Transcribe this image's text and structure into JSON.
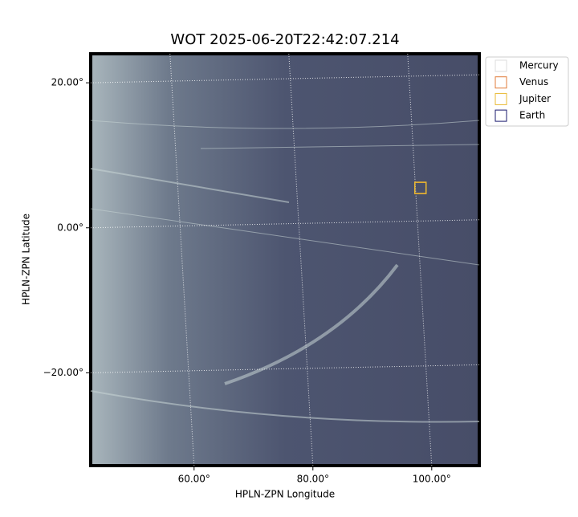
{
  "chart_data": {
    "type": "image",
    "title": "WOT 2025-06-20T22:42:07.214",
    "x_label": "HPLN-ZPN Longitude",
    "y_label": "HPLN-ZPN Latitude",
    "xlim": [
      42.6,
      108.0
    ],
    "ylim": [
      -32.8,
      24.0
    ],
    "xticks": [
      {
        "value": 60,
        "label": "60.00°"
      },
      {
        "value": 80,
        "label": "80.00°"
      },
      {
        "value": 100,
        "label": "100.00°"
      }
    ],
    "yticks": [
      {
        "value": 20,
        "label": "20.00°"
      },
      {
        "value": 0,
        "label": "0.00°"
      },
      {
        "value": -20,
        "label": "−20.00°"
      }
    ],
    "grid": true,
    "legend_position": "outside-right",
    "series": [
      {
        "name": "Mercury",
        "color": "#dddddd",
        "x": [],
        "y": []
      },
      {
        "name": "Venus",
        "color": "#e07b39",
        "x": [
          98.1
        ],
        "y": [
          5.5
        ]
      },
      {
        "name": "Jupiter",
        "color": "#e8b830",
        "x": [
          98.1
        ],
        "y": [
          5.5
        ]
      },
      {
        "name": "Earth",
        "color": "#1a1a6e",
        "x": [],
        "y": []
      }
    ]
  }
}
